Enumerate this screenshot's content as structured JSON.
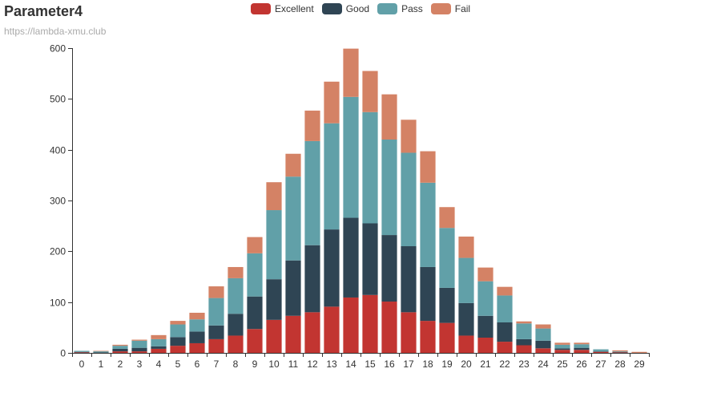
{
  "chart_data": {
    "type": "bar",
    "stacked": true,
    "title": "Parameter4",
    "subtitle": "https://lambda-xmu.club",
    "xlabel": "",
    "ylabel": "",
    "ylim": [
      0,
      600
    ],
    "yticks": [
      0,
      100,
      200,
      300,
      400,
      500,
      600
    ],
    "grid": false,
    "legend_position": "top-center",
    "categories": [
      "0",
      "1",
      "2",
      "3",
      "4",
      "5",
      "6",
      "7",
      "8",
      "9",
      "10",
      "11",
      "12",
      "13",
      "14",
      "15",
      "16",
      "17",
      "18",
      "19",
      "20",
      "21",
      "22",
      "23",
      "24",
      "25",
      "26",
      "27",
      "28",
      "29"
    ],
    "series": [
      {
        "name": "Excellent",
        "color": "#c23531",
        "values": [
          1,
          0,
          3,
          3,
          8,
          14,
          19,
          27,
          34,
          47,
          65,
          73,
          80,
          91,
          109,
          114,
          101,
          80,
          63,
          59,
          34,
          30,
          22,
          15,
          9,
          6,
          6,
          2,
          1,
          0
        ]
      },
      {
        "name": "Good",
        "color": "#2f4554",
        "values": [
          1,
          1,
          5,
          7,
          5,
          17,
          23,
          27,
          43,
          64,
          80,
          109,
          132,
          152,
          157,
          141,
          131,
          130,
          106,
          69,
          64,
          43,
          38,
          12,
          15,
          3,
          4,
          1,
          1,
          0
        ]
      },
      {
        "name": "Pass",
        "color": "#61a0a8",
        "values": [
          2,
          2,
          6,
          14,
          14,
          25,
          24,
          54,
          70,
          85,
          136,
          165,
          205,
          209,
          238,
          219,
          188,
          184,
          166,
          118,
          89,
          68,
          53,
          31,
          24,
          7,
          7,
          4,
          1,
          0
        ]
      },
      {
        "name": "Fail",
        "color": "#d48265",
        "values": [
          0,
          1,
          2,
          2,
          8,
          7,
          13,
          23,
          22,
          32,
          55,
          45,
          60,
          82,
          95,
          81,
          89,
          65,
          62,
          41,
          42,
          27,
          17,
          4,
          8,
          4,
          3,
          0,
          2,
          2
        ]
      }
    ]
  }
}
